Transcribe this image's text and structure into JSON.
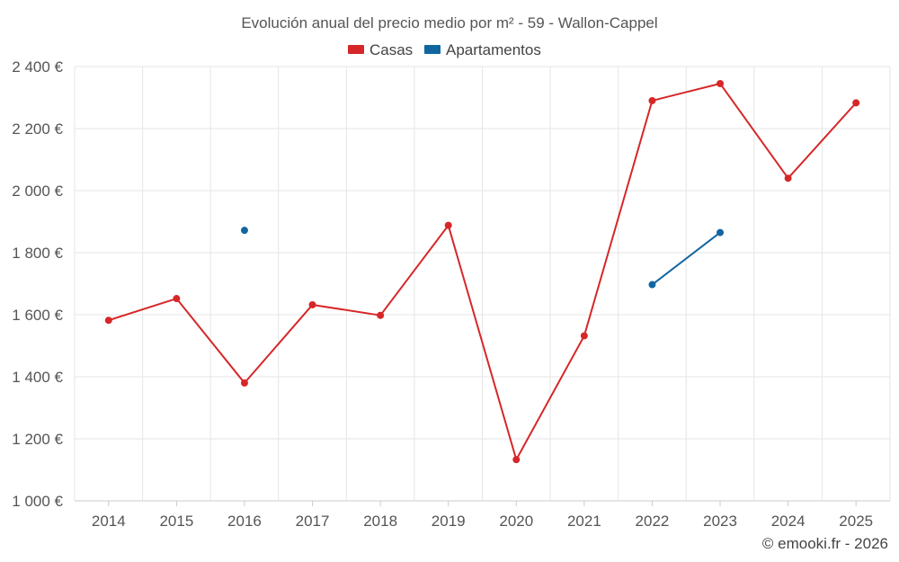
{
  "chart_data": {
    "type": "line",
    "title": "Evolución anual del precio medio por m² - 59 - Wallon-Cappel",
    "credit": "© emooki.fr - 2026",
    "categories": [
      "2014",
      "2015",
      "2016",
      "2017",
      "2018",
      "2019",
      "2020",
      "2021",
      "2022",
      "2023",
      "2024",
      "2025"
    ],
    "ylim": [
      1000,
      2400
    ],
    "yticks": [
      1000,
      1200,
      1400,
      1600,
      1800,
      2000,
      2200,
      2400
    ],
    "ytick_labels": [
      "1 000 €",
      "1 200 €",
      "1 400 €",
      "1 600 €",
      "1 800 €",
      "2 000 €",
      "2 200 €",
      "2 400 €"
    ],
    "grid": true,
    "legend_position": "top-center",
    "series": [
      {
        "name": "Casas",
        "color": "#d62728",
        "values": [
          1582,
          1652,
          1380,
          1632,
          1598,
          1888,
          1133,
          1532,
          2290,
          2345,
          2040,
          2283
        ]
      },
      {
        "name": "Apartamentos",
        "color": "#1266a0",
        "values": [
          null,
          null,
          1872,
          null,
          null,
          null,
          null,
          null,
          1697,
          1865,
          null,
          null
        ]
      }
    ]
  }
}
